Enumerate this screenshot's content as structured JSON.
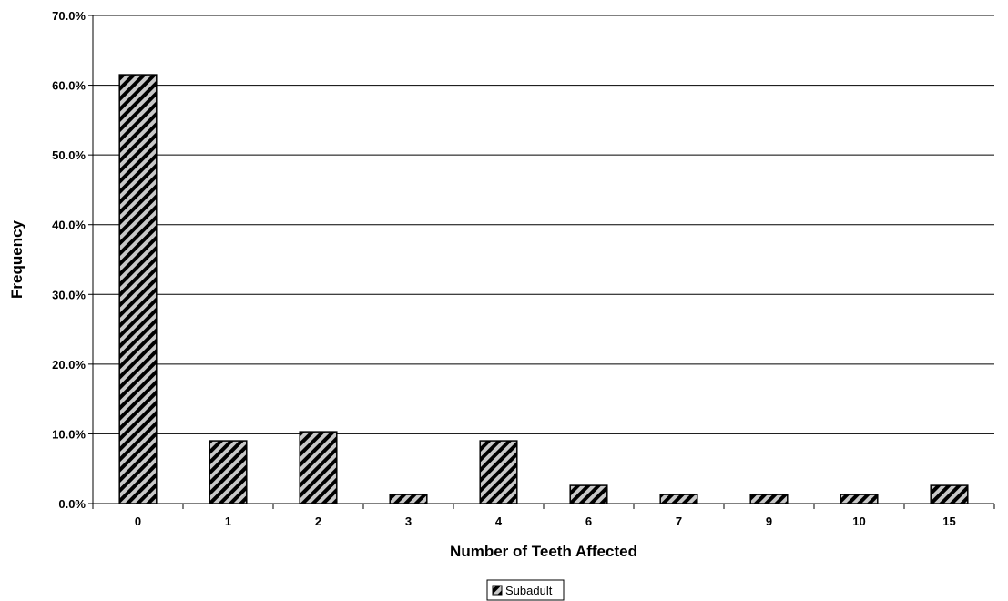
{
  "chart_data": {
    "type": "bar",
    "title": "",
    "xlabel": "Number of Teeth Affected",
    "ylabel": "Frequency",
    "categories": [
      "0",
      "1",
      "2",
      "3",
      "4",
      "6",
      "7",
      "9",
      "10",
      "15"
    ],
    "series": [
      {
        "name": "Subadult",
        "values": [
          61.5,
          9.0,
          10.3,
          1.3,
          9.0,
          2.6,
          1.3,
          1.3,
          1.3,
          2.6
        ]
      }
    ],
    "ylim": [
      0,
      70
    ],
    "yticks": [
      "0.0%",
      "10.0%",
      "20.0%",
      "30.0%",
      "40.0%",
      "50.0%",
      "60.0%",
      "70.0%"
    ],
    "grid": true,
    "legend": "bottom-center",
    "colors": {
      "bar_stripe_dark": "#000000",
      "bar_stripe_light": "#c8c8c8",
      "grid": "#000000"
    }
  }
}
